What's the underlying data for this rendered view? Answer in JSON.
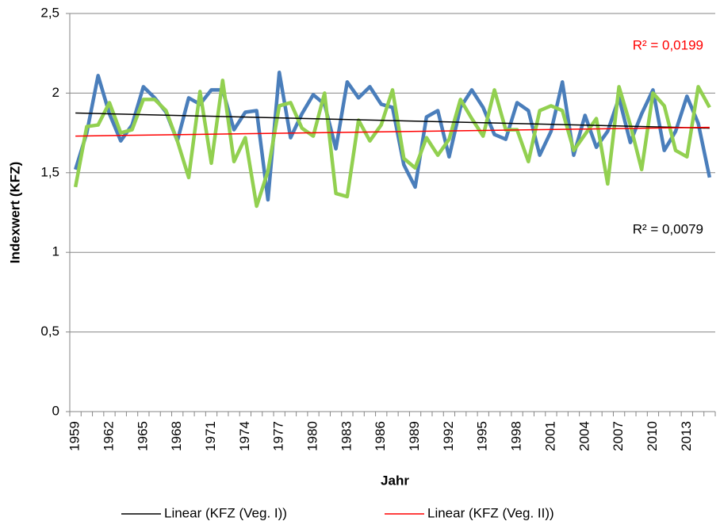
{
  "chart_data": {
    "type": "line",
    "x_label": "Jahr",
    "y_label": "Indexwert (KFZ)",
    "categories": [
      "1959",
      null,
      null,
      "1962",
      null,
      null,
      "1965",
      null,
      null,
      "1968",
      null,
      null,
      "1971",
      null,
      null,
      "1974",
      null,
      null,
      "1977",
      null,
      null,
      "1980",
      null,
      null,
      "1983",
      null,
      null,
      "1986",
      null,
      null,
      "1989",
      null,
      null,
      "1992",
      null,
      null,
      "1995",
      null,
      null,
      "1998",
      null,
      null,
      "2001",
      null,
      null,
      "2004",
      null,
      null,
      "2007",
      null,
      null,
      "2010",
      null,
      null,
      "2013",
      null,
      null
    ],
    "series": [
      {
        "color": "#4a7ebb",
        "values": [
          1.52,
          1.75,
          2.11,
          1.87,
          1.7,
          1.8,
          2.04,
          1.97,
          1.88,
          1.7,
          1.97,
          1.93,
          2.02,
          2.02,
          1.77,
          1.88,
          1.89,
          1.33,
          2.13,
          1.72,
          1.87,
          1.99,
          1.93,
          1.65,
          2.07,
          1.97,
          2.04,
          1.93,
          1.91,
          1.55,
          1.41,
          1.85,
          1.89,
          1.6,
          1.91,
          2.02,
          1.91,
          1.74,
          1.71,
          1.94,
          1.89,
          1.61,
          1.76,
          2.07,
          1.61,
          1.86,
          1.66,
          1.76,
          1.97,
          1.69,
          1.87,
          2.02,
          1.64,
          1.76,
          1.98,
          1.81,
          1.47
        ]
      },
      {
        "color": "#92d050",
        "values": [
          1.41,
          1.79,
          1.8,
          1.94,
          1.75,
          1.77,
          1.96,
          1.96,
          1.89,
          1.7,
          1.47,
          2.01,
          1.56,
          2.08,
          1.57,
          1.72,
          1.29,
          1.51,
          1.92,
          1.94,
          1.78,
          1.73,
          2.0,
          1.37,
          1.35,
          1.83,
          1.7,
          1.8,
          2.02,
          1.59,
          1.53,
          1.72,
          1.61,
          1.71,
          1.96,
          1.84,
          1.73,
          2.02,
          1.77,
          1.77,
          1.57,
          1.89,
          1.92,
          1.89,
          1.64,
          1.74,
          1.84,
          1.43,
          2.04,
          1.8,
          1.52,
          2.0,
          1.92,
          1.64,
          1.6,
          2.04,
          1.91
        ]
      }
    ],
    "trendlines": [
      {
        "name": "Linear (KFZ (Veg. I))",
        "color": "#000000",
        "start": 1.875,
        "end": 1.78,
        "r2": "R² = 0,0079"
      },
      {
        "name": "Linear (KFZ (Veg. II))",
        "color": "#ff0000",
        "start": 1.73,
        "end": 1.785,
        "r2": "R² = 0,0199"
      }
    ],
    "ylim": [
      0,
      2.5
    ],
    "yticks": [
      0,
      {
        "value": 0.5,
        "label": "0,5"
      },
      1,
      {
        "value": 1.5,
        "label": "1,5"
      },
      2,
      {
        "value": 2.5,
        "label": "2,5"
      }
    ],
    "grid": true
  }
}
